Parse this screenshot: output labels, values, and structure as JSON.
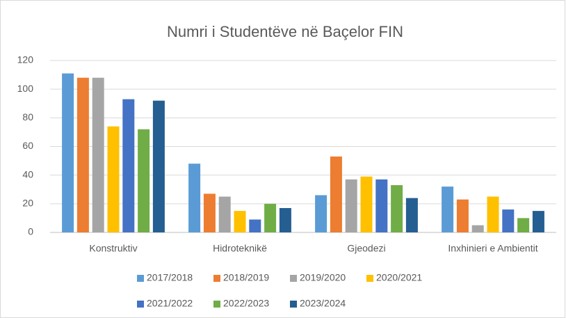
{
  "chart_data": {
    "type": "bar",
    "title": "Numri i Studentëve në Baçelor FIN",
    "categories": [
      "Konstruktiv",
      "Hidroteknikë",
      "Gjeodezi",
      "Inxhinieri e Ambientit"
    ],
    "series": [
      {
        "name": "2017/2018",
        "color": "#5b9bd5",
        "values": [
          111,
          48,
          26,
          32
        ]
      },
      {
        "name": "2018/2019",
        "color": "#ed7d31",
        "values": [
          108,
          27,
          53,
          23
        ]
      },
      {
        "name": "2019/2020",
        "color": "#a5a5a5",
        "values": [
          108,
          25,
          37,
          5
        ]
      },
      {
        "name": "2020/2021",
        "color": "#ffc000",
        "values": [
          74,
          15,
          39,
          25
        ]
      },
      {
        "name": "2021/2022",
        "color": "#4472c4",
        "values": [
          93,
          9,
          37,
          16
        ]
      },
      {
        "name": "2022/2023",
        "color": "#70ad47",
        "values": [
          72,
          20,
          33,
          10
        ]
      },
      {
        "name": "2023/2024",
        "color": "#255e91",
        "values": [
          92,
          17,
          24,
          15
        ]
      }
    ],
    "ylim": [
      0,
      120
    ],
    "yticks": [
      0,
      20,
      40,
      60,
      80,
      100,
      120
    ],
    "grid": true,
    "legend": "bottom"
  }
}
